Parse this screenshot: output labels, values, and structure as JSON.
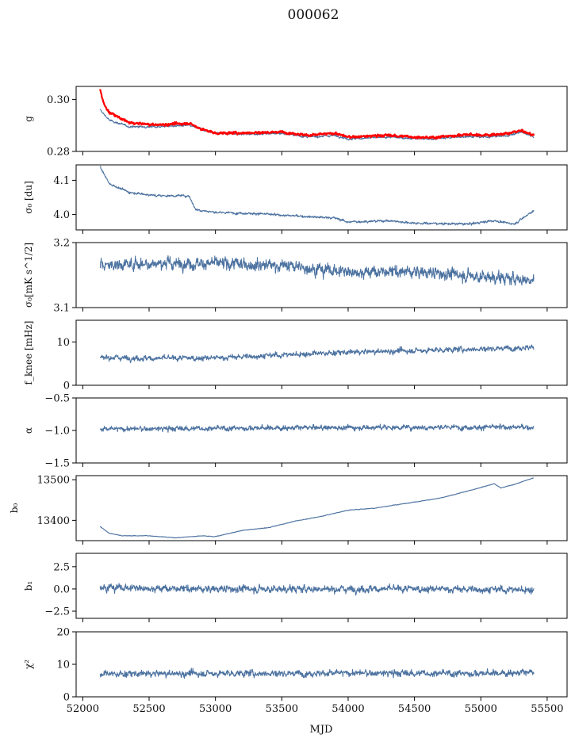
{
  "figure": {
    "title": "000062",
    "x_label": "MJD"
  },
  "chart_data": [
    {
      "type": "line",
      "ylabel": "g",
      "xlim": [
        51950,
        55650
      ],
      "ylim": [
        0.28,
        0.305
      ],
      "ytick_values": [
        0.28,
        0.3
      ],
      "ytick_labels": [
        "0.28",
        "0.30"
      ],
      "x_start": 52130,
      "x_end": 55400,
      "series": [
        {
          "color": "#4c72a0",
          "anchors": [
            [
              52130,
              0.296
            ],
            [
              52200,
              0.292
            ],
            [
              52350,
              0.2895
            ],
            [
              52550,
              0.2895
            ],
            [
              52800,
              0.29
            ],
            [
              52900,
              0.2885
            ],
            [
              53000,
              0.287
            ],
            [
              53300,
              0.2867
            ],
            [
              53500,
              0.287
            ],
            [
              53700,
              0.2855
            ],
            [
              53900,
              0.2862
            ],
            [
              54000,
              0.2848
            ],
            [
              54300,
              0.2855
            ],
            [
              54600,
              0.2847
            ],
            [
              54900,
              0.2858
            ],
            [
              55000,
              0.2855
            ],
            [
              55200,
              0.286
            ],
            [
              55300,
              0.2875
            ],
            [
              55400,
              0.2855
            ]
          ],
          "noise": 0.00035
        },
        {
          "color": "#ff0000",
          "anchors": [
            [
              52130,
              0.304
            ],
            [
              52160,
              0.298
            ],
            [
              52200,
              0.295
            ],
            [
              52350,
              0.291
            ],
            [
              52550,
              0.2902
            ],
            [
              52800,
              0.2908
            ],
            [
              52900,
              0.2885
            ],
            [
              53000,
              0.287
            ],
            [
              53300,
              0.2872
            ],
            [
              53500,
              0.2875
            ],
            [
              53700,
              0.2862
            ],
            [
              53900,
              0.287
            ],
            [
              54000,
              0.2855
            ],
            [
              54300,
              0.2862
            ],
            [
              54600,
              0.2852
            ],
            [
              54900,
              0.2865
            ],
            [
              55000,
              0.2862
            ],
            [
              55200,
              0.2868
            ],
            [
              55300,
              0.288
            ],
            [
              55400,
              0.2862
            ]
          ],
          "noise": 0.0004
        }
      ]
    },
    {
      "type": "line",
      "ylabel": "σ₀ [du]",
      "xlim": [
        51950,
        55650
      ],
      "ylim": [
        3.955,
        4.145
      ],
      "ytick_values": [
        4.0,
        4.1
      ],
      "ytick_labels": [
        "4.0",
        "4.1"
      ],
      "x_start": 52130,
      "x_end": 55400,
      "series": [
        {
          "color": "#4c72a0",
          "anchors": [
            [
              52130,
              4.14
            ],
            [
              52200,
              4.09
            ],
            [
              52350,
              4.065
            ],
            [
              52550,
              4.055
            ],
            [
              52800,
              4.055
            ],
            [
              52850,
              4.015
            ],
            [
              53000,
              4.006
            ],
            [
              53300,
              4.003
            ],
            [
              53500,
              3.998
            ],
            [
              53900,
              3.99
            ],
            [
              54000,
              3.978
            ],
            [
              54300,
              3.982
            ],
            [
              54500,
              3.975
            ],
            [
              54900,
              3.972
            ],
            [
              55100,
              3.982
            ],
            [
              55250,
              3.972
            ],
            [
              55400,
              4.012
            ]
          ],
          "noise": 0.003
        }
      ]
    },
    {
      "type": "line",
      "ylabel": "σ₀[mK s^1/2]",
      "xlim": [
        51950,
        55650
      ],
      "ylim": [
        3.1,
        3.2
      ],
      "ytick_values": [
        3.1,
        3.2
      ],
      "ytick_labels": [
        "3.1",
        "3.2"
      ],
      "x_start": 52130,
      "x_end": 55400,
      "series": [
        {
          "color": "#4c72a0",
          "anchors": [
            [
              52130,
              3.165
            ],
            [
              52500,
              3.168
            ],
            [
              53000,
              3.168
            ],
            [
              53500,
              3.165
            ],
            [
              54000,
              3.155
            ],
            [
              54500,
              3.155
            ],
            [
              55000,
              3.148
            ],
            [
              55400,
              3.142
            ]
          ],
          "noise": 0.008
        }
      ]
    },
    {
      "type": "line",
      "ylabel": "f_knee [mHz]",
      "xlim": [
        51950,
        55650
      ],
      "ylim": [
        0,
        15
      ],
      "ytick_values": [
        0,
        10
      ],
      "ytick_labels": [
        "0",
        "10"
      ],
      "x_start": 52130,
      "x_end": 55400,
      "series": [
        {
          "color": "#4c72a0",
          "anchors": [
            [
              52130,
              6.5
            ],
            [
              52500,
              6.2
            ],
            [
              53000,
              6.3
            ],
            [
              53500,
              7.0
            ],
            [
              54000,
              7.6
            ],
            [
              54500,
              8.0
            ],
            [
              55000,
              8.4
            ],
            [
              55400,
              8.8
            ]
          ],
          "noise": 0.55
        }
      ]
    },
    {
      "type": "line",
      "ylabel": "α",
      "xlim": [
        51950,
        55650
      ],
      "ylim": [
        -1.5,
        -0.5
      ],
      "ytick_values": [
        -1.5,
        -1.0,
        -0.5
      ],
      "ytick_labels": [
        "−1.5",
        "−1.0",
        "−0.5"
      ],
      "x_start": 52130,
      "x_end": 55400,
      "series": [
        {
          "color": "#4c72a0",
          "anchors": [
            [
              52130,
              -0.98
            ],
            [
              52800,
              -0.97
            ],
            [
              53500,
              -0.96
            ],
            [
              54500,
              -0.95
            ],
            [
              55400,
              -0.95
            ]
          ],
          "noise": 0.035
        }
      ]
    },
    {
      "type": "line",
      "ylabel": "b₀",
      "xlim": [
        51950,
        55650
      ],
      "ylim": [
        13350,
        13510
      ],
      "ytick_values": [
        13400,
        13500
      ],
      "ytick_labels": [
        "13400",
        "13500"
      ],
      "x_start": 52130,
      "x_end": 55400,
      "series": [
        {
          "color": "#4c72a0",
          "anchors": [
            [
              52130,
              13385
            ],
            [
              52200,
              13368
            ],
            [
              52300,
              13362
            ],
            [
              52500,
              13362
            ],
            [
              52700,
              13357
            ],
            [
              52900,
              13362
            ],
            [
              53000,
              13360
            ],
            [
              53200,
              13375
            ],
            [
              53400,
              13382
            ],
            [
              53600,
              13398
            ],
            [
              53800,
              13410
            ],
            [
              54000,
              13425
            ],
            [
              54200,
              13430
            ],
            [
              54500,
              13445
            ],
            [
              54700,
              13455
            ],
            [
              54900,
              13472
            ],
            [
              55100,
              13490
            ],
            [
              55150,
              13480
            ],
            [
              55250,
              13488
            ],
            [
              55400,
              13505
            ]
          ],
          "noise": 0.6
        }
      ]
    },
    {
      "type": "line",
      "ylabel": "b₁",
      "xlim": [
        51950,
        55650
      ],
      "ylim": [
        -3.3,
        4.0
      ],
      "ytick_values": [
        -2.5,
        0.0,
        2.5
      ],
      "ytick_labels": [
        "−2.5",
        "0.0",
        "2.5"
      ],
      "x_start": 52130,
      "x_end": 55400,
      "series": [
        {
          "color": "#4c72a0",
          "anchors": [
            [
              52130,
              0.2
            ],
            [
              52800,
              0.0
            ],
            [
              53500,
              0.0
            ],
            [
              54500,
              0.0
            ],
            [
              55400,
              -0.1
            ]
          ],
          "noise": 0.35
        }
      ]
    },
    {
      "type": "line",
      "ylabel": "χ²",
      "xlim": [
        51950,
        55650
      ],
      "ylim": [
        0,
        20
      ],
      "ytick_values": [
        0,
        10,
        20
      ],
      "ytick_labels": [
        "0",
        "10",
        "20"
      ],
      "x_start": 52130,
      "x_end": 55400,
      "series": [
        {
          "color": "#4c72a0",
          "anchors": [
            [
              52130,
              7.0
            ],
            [
              53000,
              7.2
            ],
            [
              54000,
              7.3
            ],
            [
              55000,
              7.2
            ],
            [
              55400,
              7.5
            ]
          ],
          "noise": 0.9
        }
      ]
    }
  ],
  "shared_x_axis": {
    "tick_values": [
      52000,
      52500,
      53000,
      53500,
      54000,
      54500,
      55000,
      55500
    ],
    "tick_labels": [
      "52000",
      "52500",
      "53000",
      "53500",
      "54000",
      "54500",
      "55000",
      "55500"
    ]
  }
}
